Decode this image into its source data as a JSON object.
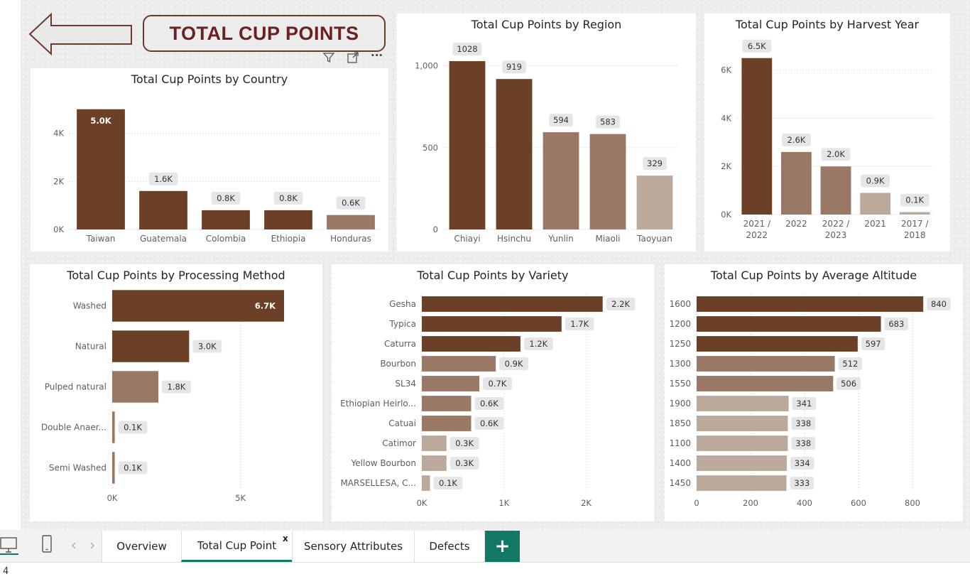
{
  "page": {
    "title": "TOTAL CUP POINTS"
  },
  "visual_toolbar": {
    "filter_icon": "filter-icon",
    "focus_icon": "focus-mode-icon",
    "more_icon": "more-options-icon",
    "more_label": "···"
  },
  "colors": {
    "dark": "#6b4026",
    "medium": "#9a7866",
    "light": "#bba99b",
    "accent": "#117865",
    "title": "#6b2121"
  },
  "charts": {
    "country": {
      "chart_data": {
        "type": "bar",
        "title": "Total Cup Points by Country",
        "categories": [
          "Taiwan",
          "Guatemala",
          "Colombia",
          "Ethiopia",
          "Honduras"
        ],
        "values": [
          5000,
          1600,
          800,
          800,
          600
        ],
        "data_labels": [
          "5.0K",
          "1.6K",
          "0.8K",
          "0.8K",
          "0.6K"
        ],
        "color_levels": [
          "dark",
          "dark",
          "dark",
          "dark",
          "medium"
        ],
        "yticks": [
          0,
          2000,
          4000
        ],
        "ytick_labels": [
          "0K",
          "2K",
          "4K"
        ],
        "ylim": [
          0,
          5200
        ],
        "grid": true
      }
    },
    "region": {
      "chart_data": {
        "type": "bar",
        "title": "Total Cup Points by Region",
        "categories": [
          "Chiayi",
          "Hsinchu",
          "Yunlin",
          "Miaoli",
          "Taoyuan"
        ],
        "values": [
          1028,
          919,
          594,
          583,
          329
        ],
        "data_labels": [
          "1028",
          "919",
          "594",
          "583",
          "329"
        ],
        "color_levels": [
          "dark",
          "dark",
          "medium",
          "medium",
          "light"
        ],
        "yticks": [
          0,
          500,
          1000
        ],
        "ytick_labels": [
          "0",
          "500",
          "1,000"
        ],
        "ylim": [
          0,
          1050
        ],
        "grid": true
      }
    },
    "harvest": {
      "chart_data": {
        "type": "bar",
        "title": "Total Cup Points by Harvest Year",
        "categories": [
          [
            "2021 /",
            "2022"
          ],
          [
            "2022"
          ],
          [
            "2022 /",
            "2023"
          ],
          [
            "2021"
          ],
          [
            "2017 /",
            "2018"
          ]
        ],
        "values": [
          6500,
          2600,
          2000,
          900,
          100
        ],
        "data_labels": [
          "6.5K",
          "2.6K",
          "2.0K",
          "0.9K",
          "0.1K"
        ],
        "color_levels": [
          "dark",
          "medium",
          "medium",
          "light",
          "light"
        ],
        "yticks": [
          0,
          2000,
          4000,
          6000
        ],
        "ytick_labels": [
          "0K",
          "2K",
          "4K",
          "6K"
        ],
        "ylim": [
          0,
          6700
        ],
        "grid": true
      }
    },
    "processing": {
      "chart_data": {
        "type": "bar",
        "orientation": "horizontal",
        "title": "Total Cup Points by Processing Method",
        "categories": [
          "Washed",
          "Natural",
          "Pulped natural",
          "Double Anaer...",
          "Semi Washed"
        ],
        "values": [
          6700,
          3000,
          1800,
          100,
          100
        ],
        "data_labels": [
          "6.7K",
          "3.0K",
          "1.8K",
          "0.1K",
          "0.1K"
        ],
        "color_levels": [
          "dark",
          "dark",
          "medium",
          "medium",
          "medium"
        ],
        "xticks": [
          0,
          5000
        ],
        "xtick_labels": [
          "0K",
          "5K"
        ],
        "xlim": [
          0,
          8000
        ],
        "grid": true
      }
    },
    "variety": {
      "chart_data": {
        "type": "bar",
        "orientation": "horizontal",
        "title": "Total Cup Points by Variety",
        "categories": [
          "Gesha",
          "Typica",
          "Caturra",
          "Bourbon",
          "SL34",
          "Ethiopian Heirlo...",
          "Catuai",
          "Catimor",
          "Yellow Bourbon",
          "MARSELLESA, C..."
        ],
        "values": [
          2200,
          1700,
          1200,
          900,
          700,
          600,
          600,
          300,
          300,
          100
        ],
        "data_labels": [
          "2.2K",
          "1.7K",
          "1.2K",
          "0.9K",
          "0.7K",
          "0.6K",
          "0.6K",
          "0.3K",
          "0.3K",
          "0.1K"
        ],
        "color_levels": [
          "dark",
          "dark",
          "dark",
          "medium",
          "medium",
          "medium",
          "medium",
          "light",
          "light",
          "light"
        ],
        "xticks": [
          0,
          1000,
          2000
        ],
        "xtick_labels": [
          "0K",
          "1K",
          "2K"
        ],
        "xlim": [
          0,
          2600
        ],
        "grid": true
      }
    },
    "altitude": {
      "chart_data": {
        "type": "bar",
        "orientation": "horizontal",
        "title": "Total Cup Points by Average Altitude",
        "categories": [
          "1600",
          "1200",
          "1250",
          "1300",
          "1550",
          "1900",
          "1850",
          "1100",
          "1400",
          "1450"
        ],
        "values": [
          840,
          683,
          597,
          512,
          506,
          341,
          338,
          338,
          334,
          333
        ],
        "data_labels": [
          "840",
          "683",
          "597",
          "512",
          "506",
          "341",
          "338",
          "338",
          "334",
          "333"
        ],
        "color_levels": [
          "dark",
          "dark",
          "dark",
          "medium",
          "medium",
          "light",
          "light",
          "light",
          "light",
          "light"
        ],
        "xticks": [
          0,
          200,
          400,
          600,
          800
        ],
        "xtick_labels": [
          "0",
          "200",
          "400",
          "600",
          "800"
        ],
        "xlim": [
          0,
          900
        ],
        "grid": true
      }
    }
  },
  "tabs": [
    {
      "label": "Overview"
    },
    {
      "label": "Total Cup Point",
      "active": true,
      "close_label": "x"
    },
    {
      "label": "Sensory Attributes"
    },
    {
      "label": "Defects"
    }
  ],
  "add_tab_label": "+",
  "status": {
    "page_number": "4"
  }
}
